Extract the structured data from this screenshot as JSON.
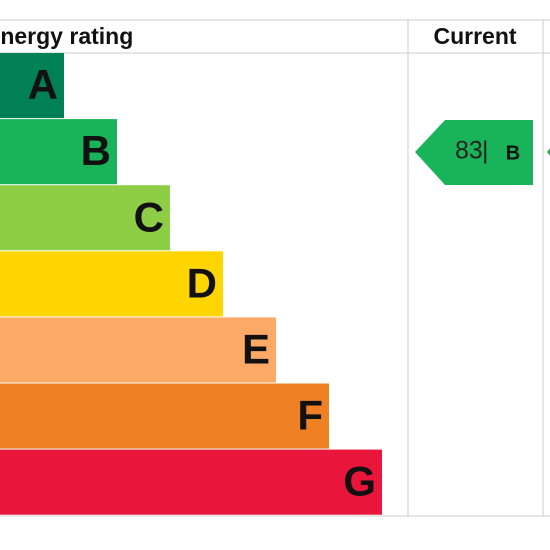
{
  "header": {
    "title": "Energy rating",
    "current": "Current"
  },
  "bands": [
    {
      "letter": "A",
      "color": "#008054"
    },
    {
      "letter": "B",
      "color": "#19b459"
    },
    {
      "letter": "C",
      "color": "#8dce46"
    },
    {
      "letter": "D",
      "color": "#ffd500"
    },
    {
      "letter": "E",
      "color": "#fcaa65"
    },
    {
      "letter": "F",
      "color": "#ef8023"
    },
    {
      "letter": "G",
      "color": "#e9153b"
    }
  ],
  "current": {
    "score": 83,
    "separator": "|",
    "band": "B",
    "color": "#19b459"
  },
  "potential": {
    "color": "#19b459"
  }
}
